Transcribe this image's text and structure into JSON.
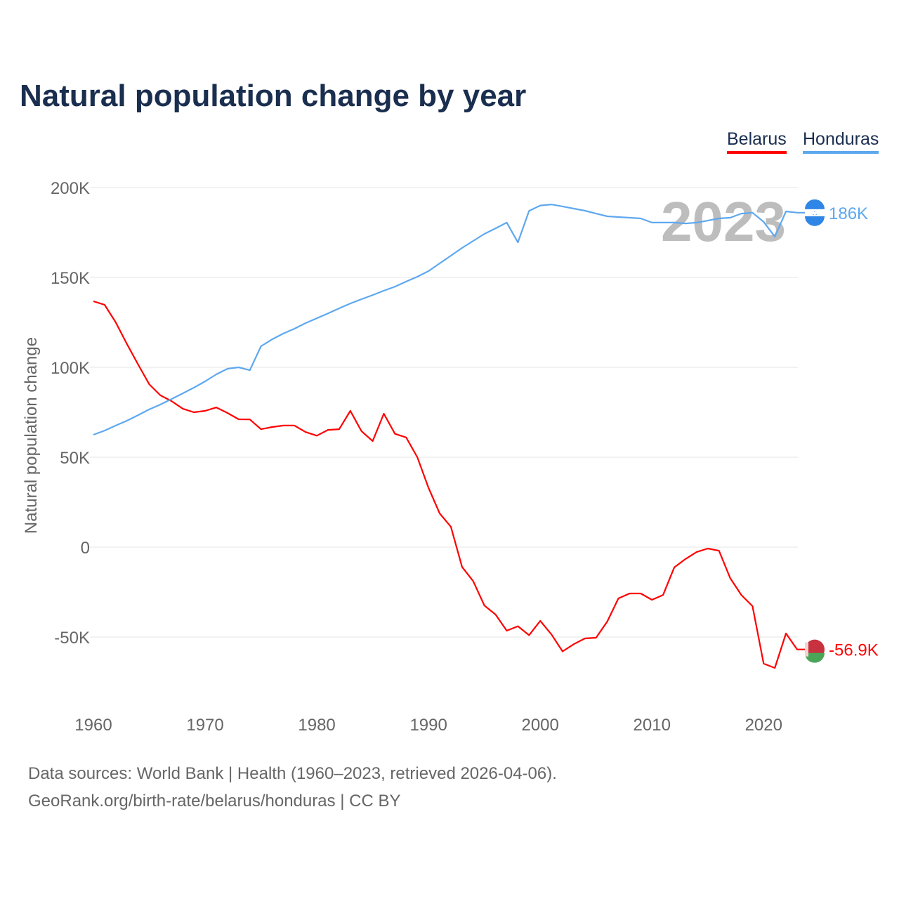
{
  "chart_data": {
    "type": "line",
    "title": "Natural population change by year",
    "xlabel": "",
    "ylabel": "Natural population change",
    "xlim": [
      1960,
      2023
    ],
    "ylim": [
      -80000,
      200000
    ],
    "yticks": [
      200000,
      150000,
      100000,
      50000,
      0,
      -50000
    ],
    "ytick_labels": [
      "200K",
      "150K",
      "100K",
      "50K",
      "0",
      "-50K"
    ],
    "xticks": [
      1960,
      1970,
      1980,
      1990,
      2000,
      2010,
      2020
    ],
    "xtick_labels": [
      "1960",
      "1970",
      "1980",
      "1990",
      "2000",
      "2010",
      "2020"
    ],
    "grid": true,
    "legend_position": "top-right",
    "highlight_year": "2023",
    "x": [
      1960,
      1961,
      1962,
      1963,
      1964,
      1965,
      1966,
      1967,
      1968,
      1969,
      1970,
      1971,
      1972,
      1973,
      1974,
      1975,
      1976,
      1977,
      1978,
      1979,
      1980,
      1981,
      1982,
      1983,
      1984,
      1985,
      1986,
      1987,
      1988,
      1989,
      1990,
      1991,
      1992,
      1993,
      1994,
      1995,
      1996,
      1997,
      1998,
      1999,
      2000,
      2001,
      2002,
      2003,
      2004,
      2005,
      2006,
      2007,
      2008,
      2009,
      2010,
      2011,
      2012,
      2013,
      2014,
      2015,
      2016,
      2017,
      2018,
      2019,
      2020,
      2021,
      2022,
      2023
    ],
    "series": [
      {
        "name": "Belarus",
        "color": "#ff0000",
        "end_label": "-56.9K",
        "values": [
          136700,
          134800,
          125000,
          113000,
          101600,
          90600,
          84400,
          81200,
          77000,
          75000,
          75800,
          77700,
          74600,
          71100,
          71000,
          65600,
          66800,
          67600,
          67600,
          64000,
          62000,
          65200,
          65600,
          75800,
          64500,
          59000,
          74200,
          63000,
          61000,
          50000,
          33000,
          18800,
          11300,
          -11000,
          -19000,
          -32500,
          -37500,
          -46500,
          -44000,
          -49000,
          -41000,
          -48500,
          -58000,
          -54000,
          -50800,
          -50400,
          -41400,
          -28500,
          -25800,
          -25800,
          -29300,
          -26600,
          -11300,
          -6600,
          -2700,
          -800,
          -2000,
          -17200,
          -26600,
          -32800,
          -64800,
          -67200,
          -48000,
          -56900
        ]
      },
      {
        "name": "Honduras",
        "color": "#5ea8ef",
        "end_label": "186K",
        "values": [
          62500,
          64800,
          67600,
          70300,
          73400,
          76600,
          79300,
          82400,
          85500,
          88700,
          92200,
          96100,
          99200,
          100000,
          98400,
          111700,
          115600,
          118800,
          121500,
          124600,
          127300,
          130000,
          132800,
          135500,
          137900,
          140200,
          142600,
          144900,
          147700,
          150400,
          153500,
          157800,
          162100,
          166400,
          170300,
          174200,
          177300,
          180500,
          169500,
          187000,
          190000,
          190600,
          189500,
          188300,
          187100,
          185500,
          184000,
          183600,
          183200,
          182800,
          180500,
          180500,
          180500,
          180000,
          180500,
          181600,
          182800,
          183200,
          185500,
          186000,
          180900,
          172700,
          186700,
          186000
        ]
      }
    ]
  },
  "footer": {
    "sources": "Data sources: World Bank | Health (1960–2023, retrieved 2026-04-06).",
    "credit": "GeoRank.org/birth-rate/belarus/honduras | CC BY"
  }
}
